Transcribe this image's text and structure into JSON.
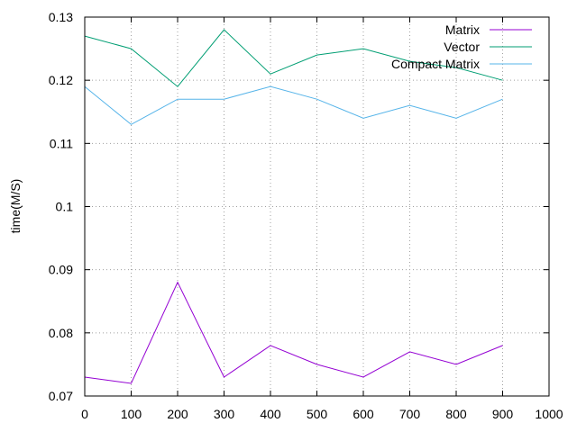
{
  "chart_data": {
    "type": "line",
    "title": "",
    "xlabel": "",
    "ylabel": "time(M/S)",
    "xlim": [
      0,
      1000
    ],
    "ylim": [
      0.07,
      0.13
    ],
    "x_ticks": [
      0,
      100,
      200,
      300,
      400,
      500,
      600,
      700,
      800,
      900,
      1000
    ],
    "x_tick_labels": [
      "0",
      "100",
      "200",
      "300",
      "400",
      "500",
      "600",
      "700",
      "800",
      "900",
      "1000"
    ],
    "y_ticks": [
      0.07,
      0.08,
      0.09,
      0.1,
      0.11,
      0.12,
      0.13
    ],
    "y_tick_labels": [
      "0.07",
      "0.08",
      "0.09",
      "0.1",
      "0.11",
      "0.12",
      "0.13"
    ],
    "grid": true,
    "legend_position": "top-right",
    "x": [
      0,
      100,
      200,
      300,
      400,
      500,
      600,
      700,
      800,
      900
    ],
    "series": [
      {
        "name": "Matrix",
        "color": "#9400d3",
        "values": [
          0.073,
          0.072,
          0.088,
          0.073,
          0.078,
          0.075,
          0.073,
          0.077,
          0.075,
          0.078
        ]
      },
      {
        "name": "Vector",
        "color": "#009e73",
        "values": [
          0.127,
          0.125,
          0.119,
          0.128,
          0.121,
          0.124,
          0.125,
          0.123,
          0.122,
          0.12
        ]
      },
      {
        "name": "Compact Matrix",
        "color": "#56b4e9",
        "values": [
          0.119,
          0.113,
          0.117,
          0.117,
          0.119,
          0.117,
          0.114,
          0.116,
          0.114,
          0.117
        ]
      }
    ]
  }
}
